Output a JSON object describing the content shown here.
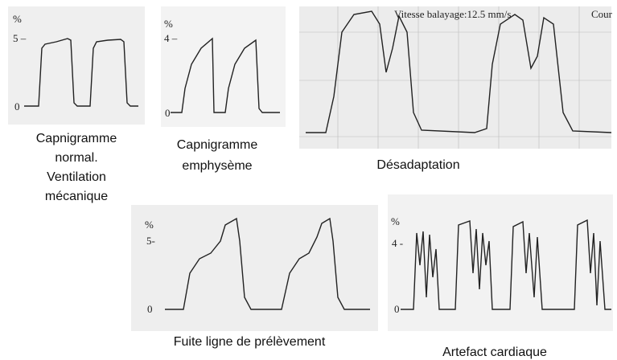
{
  "panels": [
    {
      "labels": [
        "%",
        "5 –",
        "0"
      ],
      "caption": [
        "Capnigramme",
        "normal.",
        "Ventilation",
        "mécanique"
      ]
    },
    {
      "labels": [
        "%",
        "4 –",
        "0"
      ],
      "caption": [
        "Capnigramme",
        "emphysème"
      ]
    },
    {
      "labels": [
        "Vitesse balayage:12.5 mm/s",
        "Cour"
      ],
      "caption": [
        "Désadaptation"
      ]
    },
    {
      "labels": [
        "%",
        "5-",
        "0"
      ],
      "caption": [
        "Fuite ligne de prélèvement"
      ]
    },
    {
      "labels": [
        "%",
        "4 -",
        "0"
      ],
      "caption": [
        "Artefact cardiaque"
      ]
    }
  ]
}
